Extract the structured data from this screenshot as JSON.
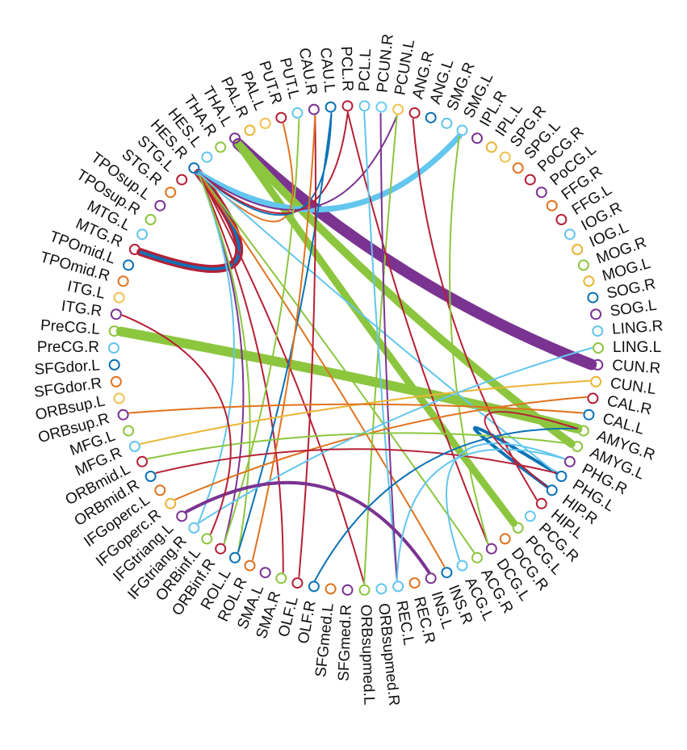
{
  "diagram": {
    "type": "connectogram",
    "nodes": [
      {
        "id": "PCUN.R",
        "color": "#6ecff6"
      },
      {
        "id": "PCUN.L",
        "color": "#f0c150"
      },
      {
        "id": "ANG.R",
        "color": "#b52036"
      },
      {
        "id": "ANG.L",
        "color": "#0b72b6"
      },
      {
        "id": "SMG.R",
        "color": "#61c4ea"
      },
      {
        "id": "SMG.L",
        "color": "#62c6ee"
      },
      {
        "id": "IPL.R",
        "color": "#7b3392"
      },
      {
        "id": "IPL.L",
        "color": "#e9b534"
      },
      {
        "id": "SPG.R",
        "color": "#f0c150"
      },
      {
        "id": "SPG.L",
        "color": "#e0731f"
      },
      {
        "id": "PoCG.R",
        "color": "#b52036"
      },
      {
        "id": "PoCG.L",
        "color": "#7b3392"
      },
      {
        "id": "FFG.R",
        "color": "#e0731f"
      },
      {
        "id": "FFG.L",
        "color": "#b52036"
      },
      {
        "id": "IOG.R",
        "color": "#62c6ee"
      },
      {
        "id": "IOG.L",
        "color": "#e9b534"
      },
      {
        "id": "MOG.R",
        "color": "#8cc63f"
      },
      {
        "id": "MOG.L",
        "color": "#e9b534"
      },
      {
        "id": "SOG.R",
        "color": "#0b72b6"
      },
      {
        "id": "SOG.L",
        "color": "#7b3392"
      },
      {
        "id": "LING.R",
        "color": "#62c6ee"
      },
      {
        "id": "LING.L",
        "color": "#8cc63f"
      },
      {
        "id": "CUN.R",
        "color": "#7b3392"
      },
      {
        "id": "CUN.L",
        "color": "#e9b534"
      },
      {
        "id": "CAL.R",
        "color": "#b52036"
      },
      {
        "id": "CAL.L",
        "color": "#0b72b6"
      },
      {
        "id": "AMYG.R",
        "color": "#8cc63f"
      },
      {
        "id": "AMYG.L",
        "color": "#8cc63f"
      },
      {
        "id": "PHG.R",
        "color": "#7b3392"
      },
      {
        "id": "PHG.L",
        "color": "#0b72b6"
      },
      {
        "id": "HIP.R",
        "color": "#0b72b6"
      },
      {
        "id": "HIP.L",
        "color": "#b52036"
      },
      {
        "id": "PCG.R",
        "color": "#62c6ee"
      },
      {
        "id": "PCG.L",
        "color": "#8cc63f"
      },
      {
        "id": "DCG.R",
        "color": "#e0731f"
      },
      {
        "id": "DCG.L",
        "color": "#7b3392"
      },
      {
        "id": "ACG.R",
        "color": "#8cc63f"
      },
      {
        "id": "ACG.L",
        "color": "#62c6ee"
      },
      {
        "id": "INS.R",
        "color": "#0b72b6"
      },
      {
        "id": "INS.L",
        "color": "#7b3392"
      },
      {
        "id": "REC.R",
        "color": "#e0731f"
      },
      {
        "id": "REC.L",
        "color": "#62c6ee"
      },
      {
        "id": "ORBsupmed.R",
        "color": "#62c6ee"
      },
      {
        "id": "ORBsupmed.L",
        "color": "#8cc63f"
      },
      {
        "id": "SFGmed.R",
        "color": "#7b3392"
      },
      {
        "id": "SFGmed.L",
        "color": "#e0731f"
      },
      {
        "id": "OLF.R",
        "color": "#0b72b6"
      },
      {
        "id": "OLF.L",
        "color": "#b52036"
      },
      {
        "id": "SMA.R",
        "color": "#8cc63f"
      },
      {
        "id": "SMA.L",
        "color": "#7b3392"
      },
      {
        "id": "ROL.R",
        "color": "#e0731f"
      },
      {
        "id": "ROL.L",
        "color": "#0b72b6"
      },
      {
        "id": "ORBinf.R",
        "color": "#b52036"
      },
      {
        "id": "ORBinf.L",
        "color": "#8cc63f"
      },
      {
        "id": "IFGtriang.R",
        "color": "#62c6ee"
      },
      {
        "id": "IFGtriang.L",
        "color": "#7b3392"
      },
      {
        "id": "IFGoperc.R",
        "color": "#e9b534"
      },
      {
        "id": "IFGoperc.L",
        "color": "#e0731f"
      },
      {
        "id": "ORBmid.R",
        "color": "#0b72b6"
      },
      {
        "id": "ORBmid.L",
        "color": "#b52036"
      },
      {
        "id": "MFG.R",
        "color": "#62c6ee"
      },
      {
        "id": "MFG.L",
        "color": "#8cc63f"
      },
      {
        "id": "ORBsup.R",
        "color": "#7b3392"
      },
      {
        "id": "ORBsup.L",
        "color": "#f0c150"
      },
      {
        "id": "SFGdor.R",
        "color": "#e0731f"
      },
      {
        "id": "SFGdor.L",
        "color": "#0b72b6"
      },
      {
        "id": "PreCG.R",
        "color": "#62c6ee"
      },
      {
        "id": "PreCG.L",
        "color": "#8cc63f"
      },
      {
        "id": "ITG.R",
        "color": "#7b3392"
      },
      {
        "id": "ITG.L",
        "color": "#f0c150"
      },
      {
        "id": "TPOmid.R",
        "color": "#e0731f"
      },
      {
        "id": "TPOmid.L",
        "color": "#0b72b6"
      },
      {
        "id": "MTG.R",
        "color": "#b52036"
      },
      {
        "id": "MTG.L",
        "color": "#62c6ee"
      },
      {
        "id": "TPOsup.R",
        "color": "#8cc63f"
      },
      {
        "id": "TPOsup.L",
        "color": "#7b3392"
      },
      {
        "id": "STG.R",
        "color": "#e0731f"
      },
      {
        "id": "STG.L",
        "color": "#b52036"
      },
      {
        "id": "HES.R",
        "color": "#0b72b6"
      },
      {
        "id": "HES.L",
        "color": "#62c6ee"
      },
      {
        "id": "THA.R",
        "color": "#8cc63f"
      },
      {
        "id": "THA.L",
        "color": "#7b3392"
      },
      {
        "id": "PAL.R",
        "color": "#e9b534"
      },
      {
        "id": "PAL.L",
        "color": "#f0c150"
      },
      {
        "id": "PUT.R",
        "color": "#b52036"
      },
      {
        "id": "PUT.L",
        "color": "#62c6ee"
      },
      {
        "id": "CAU.R",
        "color": "#7b3392"
      },
      {
        "id": "CAU.L",
        "color": "#0b72b6"
      },
      {
        "id": "PCL.R",
        "color": "#b52036"
      },
      {
        "id": "PCL.L",
        "color": "#62c6ee"
      }
    ],
    "edges": [
      {
        "source": "THA.L",
        "target": "CUN.R",
        "weight": 14,
        "color": "#7b3392"
      },
      {
        "source": "THA.L",
        "target": "AMYG.L",
        "weight": 10,
        "color": "#8cc63f"
      },
      {
        "source": "PreCG.L",
        "target": "AMYG.R",
        "weight": 12,
        "color": "#8cc63f"
      },
      {
        "source": "THA.L",
        "target": "PCG.L",
        "weight": 9,
        "color": "#8cc63f"
      },
      {
        "source": "HES.R",
        "target": "MTG.R",
        "weight": 10,
        "color": "#b52036"
      },
      {
        "source": "HES.R",
        "target": "SMG.L",
        "weight": 7,
        "color": "#62c6ee"
      },
      {
        "source": "HES.R",
        "target": "MTG.R",
        "weight": 4,
        "color": "#0b72b6"
      },
      {
        "source": "PHG.L",
        "target": "HIP.R",
        "weight": 4,
        "color": "#0b72b6"
      },
      {
        "source": "HES.R",
        "target": "SMA.R",
        "weight": 2,
        "color": "#b52036"
      },
      {
        "source": "HES.R",
        "target": "ORBinf.R",
        "weight": 2,
        "color": "#7b3392"
      },
      {
        "source": "HES.R",
        "target": "IFGtriang.R",
        "weight": 2,
        "color": "#62c6ee"
      },
      {
        "source": "HES.R",
        "target": "ACG.R",
        "weight": 2,
        "color": "#8cc63f"
      },
      {
        "source": "HES.R",
        "target": "INS.R",
        "weight": 2,
        "color": "#e0731f"
      },
      {
        "source": "HES.R",
        "target": "ORBsupmed.L",
        "weight": 2,
        "color": "#b52036"
      },
      {
        "source": "HES.R",
        "target": "ROL.L",
        "weight": 2,
        "color": "#8cc63f"
      },
      {
        "source": "HES.R",
        "target": "PCUN.L",
        "weight": 2,
        "color": "#7b3392"
      },
      {
        "source": "HES.R",
        "target": "PUT.R",
        "weight": 2,
        "color": "#e0731f"
      },
      {
        "source": "HES.R",
        "target": "CAU.L",
        "weight": 2,
        "color": "#0b72b6"
      },
      {
        "source": "HES.R",
        "target": "PCL.R",
        "weight": 2,
        "color": "#b52036"
      },
      {
        "source": "HES.R",
        "target": "PHG.L",
        "weight": 2,
        "color": "#62c6ee"
      },
      {
        "source": "CAU.L",
        "target": "ROL.L",
        "weight": 2,
        "color": "#0b72b6"
      },
      {
        "source": "CAU.R",
        "target": "OLF.L",
        "weight": 2,
        "color": "#b52036"
      },
      {
        "source": "CAU.R",
        "target": "ROL.R",
        "weight": 2,
        "color": "#e0731f"
      },
      {
        "source": "PUT.L",
        "target": "ORBinf.R",
        "weight": 2,
        "color": "#8cc63f"
      },
      {
        "source": "PCUN.L",
        "target": "ORBsupmed.L",
        "weight": 2,
        "color": "#8cc63f"
      },
      {
        "source": "PCL.R",
        "target": "DCG.L",
        "weight": 2,
        "color": "#b52036"
      },
      {
        "source": "PCL.L",
        "target": "REC.L",
        "weight": 2,
        "color": "#62c6ee"
      },
      {
        "source": "PCUN.R",
        "target": "REC.L",
        "weight": 2,
        "color": "#7b3392"
      },
      {
        "source": "ANG.R",
        "target": "HIP.L",
        "weight": 2,
        "color": "#b52036"
      },
      {
        "source": "SMG.L",
        "target": "DCG.L",
        "weight": 2,
        "color": "#8cc63f"
      },
      {
        "source": "MFG.R",
        "target": "CUN.L",
        "weight": 2,
        "color": "#e9b534"
      },
      {
        "source": "ORBsup.R",
        "target": "CAL.L",
        "weight": 2,
        "color": "#e0731f"
      },
      {
        "source": "IFGoperc.R",
        "target": "CAL.R",
        "weight": 2,
        "color": "#e0731f"
      },
      {
        "source": "IFGtriang.R",
        "target": "LING.L",
        "weight": 2,
        "color": "#62c6ee"
      },
      {
        "source": "ORBmid.R",
        "target": "PHG.L",
        "weight": 2,
        "color": "#b52036"
      },
      {
        "source": "ORBmid.L",
        "target": "AMYG.L",
        "weight": 2,
        "color": "#8cc63f"
      },
      {
        "source": "IFGtriang.L",
        "target": "INS.L",
        "weight": 4,
        "color": "#7b3392"
      },
      {
        "source": "ITG.R",
        "target": "ORBinf.L",
        "weight": 2,
        "color": "#b52036"
      },
      {
        "source": "OLF.R",
        "target": "AMYG.R",
        "weight": 2,
        "color": "#0b72b6"
      },
      {
        "source": "REC.L",
        "target": "PHG.R",
        "weight": 2,
        "color": "#62c6ee"
      },
      {
        "source": "ACG.L",
        "target": "PHG.R",
        "weight": 2,
        "color": "#62c6ee"
      },
      {
        "source": "AMYG.R",
        "target": "HIP.R",
        "weight": 2,
        "color": "#b52036"
      }
    ]
  }
}
